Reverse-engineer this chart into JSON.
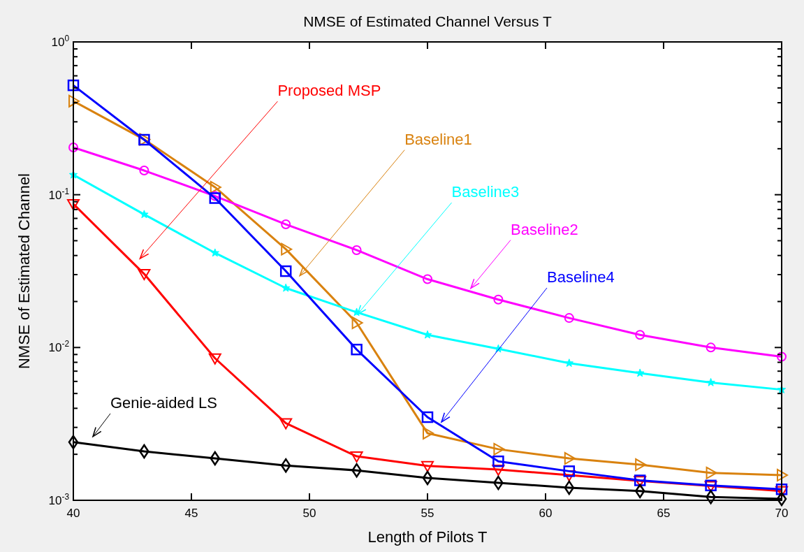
{
  "chart_data": {
    "type": "line",
    "title": "NMSE of Estimated Channel Versus T",
    "xlabel": "Length of Pilots T",
    "ylabel": "NMSE of Estimated Channel",
    "log": "y",
    "grid": false,
    "x": [
      40,
      43,
      46,
      49,
      52,
      55,
      58,
      61,
      64,
      67,
      70
    ],
    "series": [
      {
        "name": "Proposed MSP",
        "color": "#ff0000",
        "marker": "triangle",
        "values": [
          0.087,
          0.0303,
          0.0085,
          0.0032,
          0.00194,
          0.00168,
          0.00159,
          0.00146,
          0.00134,
          0.00124,
          0.00115
        ]
      },
      {
        "name": "Baseline1",
        "color": "#d9820f",
        "marker": "triangle",
        "values": [
          0.41,
          0.23,
          0.112,
          0.044,
          0.0145,
          0.00275,
          0.00216,
          0.00188,
          0.00171,
          0.00151,
          0.00146
        ]
      },
      {
        "name": "Baseline3",
        "color": "#00ffff",
        "marker": "star",
        "values": [
          0.135,
          0.0743,
          0.0416,
          0.0245,
          0.017,
          0.0121,
          0.0098,
          0.0079,
          0.0068,
          0.0059,
          0.0053
        ]
      },
      {
        "name": "Baseline2",
        "color": "#ff00ff",
        "marker": "circle",
        "values": [
          0.204,
          0.144,
          0.098,
          0.064,
          0.0434,
          0.028,
          0.0206,
          0.0156,
          0.0121,
          0.01,
          0.0087
        ]
      },
      {
        "name": "Baseline4",
        "color": "#0000ff",
        "marker": "square",
        "values": [
          0.52,
          0.229,
          0.095,
          0.0316,
          0.0097,
          0.0035,
          0.0018,
          0.00155,
          0.00135,
          0.00125,
          0.00118
        ]
      },
      {
        "name": "Genie-aided LS",
        "color": "#000000",
        "marker": "diamond",
        "values": [
          0.0024,
          0.00209,
          0.00188,
          0.00169,
          0.00157,
          0.0014,
          0.0013,
          0.00121,
          0.00115,
          0.00105,
          0.00102
        ]
      }
    ],
    "xlim": [
      40,
      70
    ],
    "xticks": [
      40,
      45,
      50,
      55,
      60,
      65,
      70
    ],
    "ylim": [
      0.001,
      1
    ],
    "yticks": [
      {
        "value": 0.001,
        "label": "10$^{-3}$"
      },
      {
        "value": 0.002,
        "label": null
      },
      {
        "value": 0.003,
        "label": null
      },
      {
        "value": 0.004,
        "label": null
      },
      {
        "value": 0.005,
        "label": null
      },
      {
        "value": 0.006,
        "label": null
      },
      {
        "value": 0.007,
        "label": null
      },
      {
        "value": 0.008,
        "label": null
      },
      {
        "value": 0.009,
        "label": null
      },
      {
        "value": 0.01,
        "label": "10$^{-2}$"
      },
      {
        "value": 0.02,
        "label": null
      },
      {
        "value": 0.03,
        "label": null
      },
      {
        "value": 0.04,
        "label": null
      },
      {
        "value": 0.05,
        "label": null
      },
      {
        "value": 0.06,
        "label": null
      },
      {
        "value": 0.07,
        "label": null
      },
      {
        "value": 0.08,
        "label": null
      },
      {
        "value": 0.09,
        "label": null
      },
      {
        "value": 0.1,
        "label": "10$^{-1}$"
      },
      {
        "value": 0.2,
        "label": null
      },
      {
        "value": 0.3,
        "label": null
      },
      {
        "value": 0.4,
        "label": null
      },
      {
        "value": 0.5,
        "label": null
      },
      {
        "value": 0.6,
        "label": null
      },
      {
        "value": 0.7,
        "label": null
      },
      {
        "value": 0.8,
        "label": null
      },
      {
        "value": 0.9,
        "label": null
      },
      {
        "value": 1,
        "label": "10$^{0}$"
      }
    ]
  }
}
